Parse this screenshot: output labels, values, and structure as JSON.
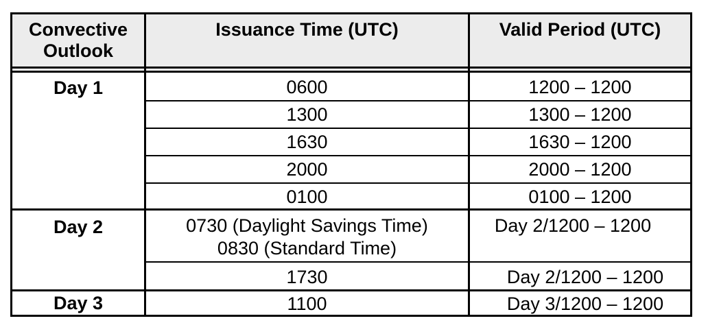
{
  "headers": {
    "col1": "Convective\nOutlook",
    "col2": "Issuance Time (UTC)",
    "col3": "Valid Period (UTC)"
  },
  "groups": [
    {
      "label": "Day 1"
    },
    {
      "label": "Day 2"
    },
    {
      "label": "Day 3"
    }
  ],
  "rows": [
    {
      "issuance": "0600",
      "valid": "1200 – 1200"
    },
    {
      "issuance": "1300",
      "valid": "1300 – 1200"
    },
    {
      "issuance": "1630",
      "valid": "1630 – 1200"
    },
    {
      "issuance": "2000",
      "valid": "2000 – 1200"
    },
    {
      "issuance": "0100",
      "valid": "0100 – 1200"
    },
    {
      "issuance": "0730 (Daylight Savings Time)\n0830 (Standard Time)",
      "valid": "Day 2/1200 – 1200"
    },
    {
      "issuance": "1730",
      "valid": "Day 2/1200 – 1200"
    },
    {
      "issuance": "1100",
      "valid": "Day 3/1200 – 1200"
    }
  ]
}
